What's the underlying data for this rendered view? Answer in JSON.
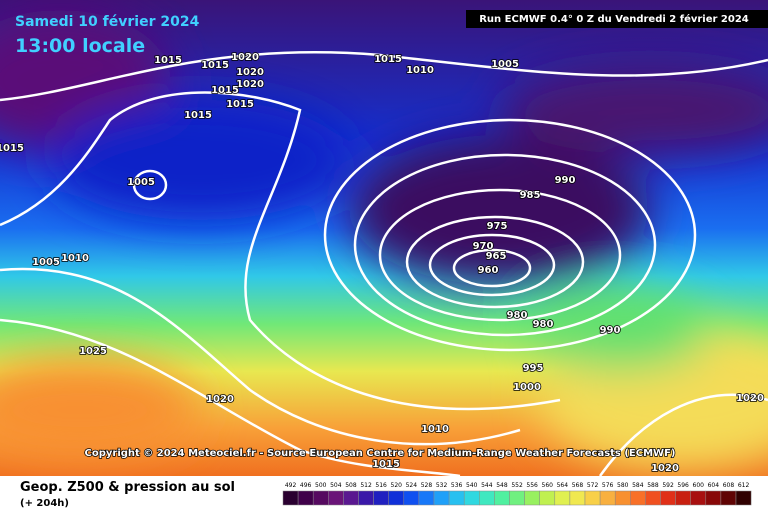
{
  "header": {
    "date": "Samedi 10 février 2024",
    "time": "13:00 locale",
    "run": "Run ECMWF 0.4° 0 Z du Vendredi 2 février 2024"
  },
  "isobar_labels": [
    "1015",
    "1015",
    "1020",
    "1020",
    "1020",
    "1015",
    "1015",
    "1015",
    "1015",
    "1015",
    "1010",
    "1005",
    "1005",
    "1005",
    "1010",
    "990",
    "985",
    "975",
    "970",
    "965",
    "960",
    "980",
    "980",
    "990",
    "995",
    "1000",
    "1025",
    "1020",
    "1010",
    "1015",
    "1020",
    "1020"
  ],
  "copyright": "Copyright © 2024 Meteociel.fr - Source European Centre for Medium-Range Weather Forecasts (ECMWF)",
  "footer": {
    "title": "Geop. Z500 & pression au sol",
    "lead": "(+ 204h)"
  },
  "scale": {
    "values": [
      492,
      496,
      500,
      504,
      508,
      512,
      516,
      520,
      524,
      528,
      532,
      536,
      540,
      544,
      548,
      552,
      556,
      560,
      564,
      568,
      572,
      576,
      580,
      584,
      588,
      592,
      596,
      600,
      604,
      608,
      612
    ],
    "colors": [
      "#2a0030",
      "#40004a",
      "#560a60",
      "#6a1478",
      "#5a1890",
      "#3a18a8",
      "#2020c0",
      "#1030d8",
      "#1050f0",
      "#1878f8",
      "#20a0f8",
      "#28c0f0",
      "#30d8e0",
      "#40e8c0",
      "#50f0a0",
      "#70f080",
      "#98f060",
      "#c0f050",
      "#e0f050",
      "#f0e850",
      "#f8d048",
      "#f8b040",
      "#f89030",
      "#f87028",
      "#f05020",
      "#e03018",
      "#c82010",
      "#a81010",
      "#880808",
      "#600404",
      "#300000"
    ]
  }
}
